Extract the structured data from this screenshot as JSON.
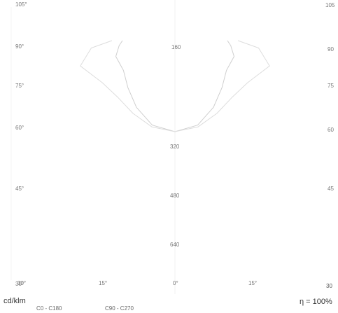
{
  "chart_data": {
    "type": "polar-luminous-intensity",
    "unit_label": "cd/klm",
    "efficiency_label": "η = 100%",
    "legend": [
      "C0 - C180",
      "C90 - C270"
    ],
    "angle_labels_left": [
      "105°",
      "90°",
      "75°",
      "60°",
      "45°",
      "30°"
    ],
    "angle_labels_right": [
      "105",
      "90",
      "75",
      "60",
      "45",
      "30"
    ],
    "bottom_labels": [
      "30°",
      "15°",
      "0°",
      "15°",
      "30"
    ],
    "radial_labels": [
      "160",
      "320",
      "480",
      "640"
    ],
    "rmax": 800,
    "series": [
      {
        "name": "C0 - C180",
        "color": "#cfcfcf",
        "angles": [
          0,
          15,
          30,
          45,
          60,
          75,
          85,
          90
        ],
        "values": [
          260,
          250,
          220,
          190,
          170,
          175,
          160,
          150
        ]
      },
      {
        "name": "C90 - C270",
        "color": "#dddddd",
        "angles": [
          0,
          15,
          30,
          45,
          60,
          75,
          85,
          90
        ],
        "values": [
          260,
          255,
          240,
          230,
          240,
          280,
          240,
          180
        ]
      }
    ]
  }
}
